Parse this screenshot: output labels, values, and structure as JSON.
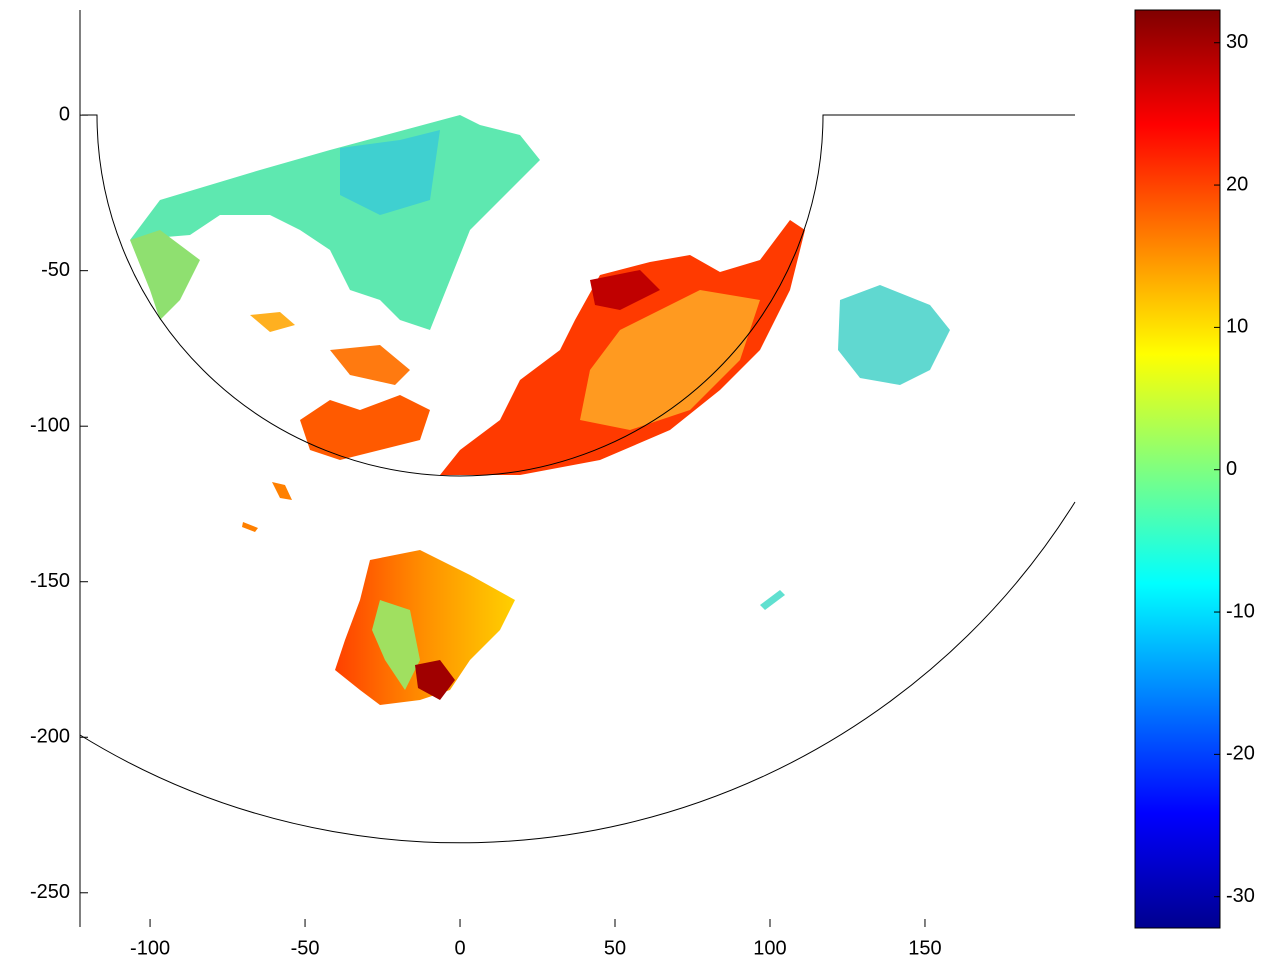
{
  "chart_data": {
    "type": "heatmap",
    "xlim": [
      -122.6,
      198.4
    ],
    "ylim": [
      -261,
      33.8
    ],
    "xticks": [
      -100,
      -50,
      0,
      50,
      100,
      150
    ],
    "yticks": [
      -250,
      -200,
      -150,
      -100,
      -50,
      0
    ],
    "colormap": "jet",
    "clim": [
      -32.2,
      32.3
    ],
    "cticks": [
      -30,
      -20,
      -10,
      0,
      10,
      20,
      30
    ]
  }
}
